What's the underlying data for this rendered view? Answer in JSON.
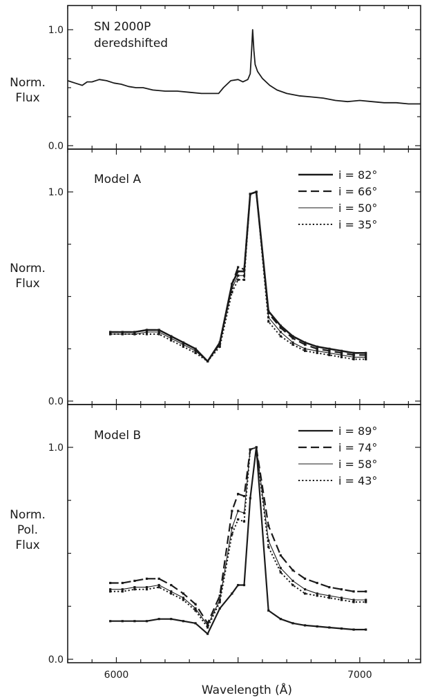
{
  "chart_data": [
    {
      "type": "line",
      "text": "SN 2000P\nderedshifted",
      "ylabel": "Norm.\nFlux",
      "xlim": [
        5800,
        7250
      ],
      "ylim": [
        0.0,
        1.15
      ],
      "yticks": [
        {
          "v": 0.0,
          "label": "0.0"
        },
        {
          "v": 1.0,
          "label": "1.0"
        }
      ],
      "grid": false,
      "series": [
        {
          "style": "solid",
          "markers": false,
          "x": [
            5800,
            5830,
            5860,
            5880,
            5900,
            5930,
            5960,
            5990,
            6020,
            6050,
            6080,
            6110,
            6150,
            6200,
            6250,
            6300,
            6350,
            6400,
            6420,
            6440,
            6470,
            6500,
            6520,
            6540,
            6550,
            6555,
            6560,
            6565,
            6570,
            6580,
            6600,
            6630,
            6660,
            6700,
            6750,
            6800,
            6850,
            6900,
            6950,
            7000,
            7050,
            7100,
            7150,
            7200,
            7250
          ],
          "y": [
            0.56,
            0.54,
            0.52,
            0.55,
            0.55,
            0.57,
            0.56,
            0.54,
            0.53,
            0.51,
            0.5,
            0.5,
            0.48,
            0.47,
            0.47,
            0.46,
            0.45,
            0.45,
            0.45,
            0.5,
            0.56,
            0.57,
            0.55,
            0.57,
            0.62,
            0.8,
            1.0,
            0.82,
            0.7,
            0.64,
            0.58,
            0.52,
            0.48,
            0.45,
            0.43,
            0.42,
            0.41,
            0.39,
            0.38,
            0.39,
            0.38,
            0.37,
            0.37,
            0.36,
            0.36
          ]
        }
      ]
    },
    {
      "type": "line",
      "text": "Model A",
      "ylabel": "Norm.\nFlux",
      "xlim": [
        5800,
        7250
      ],
      "ylim": [
        0.0,
        1.15
      ],
      "yticks": [
        {
          "v": 0.0,
          "label": "0.0"
        },
        {
          "v": 1.0,
          "label": "1.0"
        }
      ],
      "grid": false,
      "legend": "top-right",
      "series": [
        {
          "name": "i = 82°",
          "style": "solid",
          "width": 2.6,
          "markers": true,
          "x": [
            5975,
            6025,
            6075,
            6125,
            6175,
            6225,
            6275,
            6325,
            6375,
            6425,
            6475,
            6500,
            6525,
            6550,
            6575,
            6625,
            6675,
            6725,
            6775,
            6825,
            6875,
            6925,
            6975,
            7025
          ],
          "y": [
            0.33,
            0.33,
            0.33,
            0.34,
            0.34,
            0.31,
            0.28,
            0.25,
            0.19,
            0.28,
            0.56,
            0.62,
            0.62,
            0.99,
            1.0,
            0.43,
            0.36,
            0.31,
            0.28,
            0.26,
            0.25,
            0.24,
            0.23,
            0.23
          ]
        },
        {
          "name": "i = 66°",
          "style": "dashed",
          "width": 2.2,
          "markers": true,
          "x": [
            5975,
            6025,
            6075,
            6125,
            6175,
            6225,
            6275,
            6325,
            6375,
            6425,
            6475,
            6500,
            6525,
            6550,
            6575,
            6625,
            6675,
            6725,
            6775,
            6825,
            6875,
            6925,
            6975,
            7025
          ],
          "y": [
            0.33,
            0.33,
            0.33,
            0.34,
            0.34,
            0.31,
            0.28,
            0.25,
            0.19,
            0.28,
            0.56,
            0.64,
            0.63,
            0.99,
            1.0,
            0.42,
            0.35,
            0.3,
            0.27,
            0.25,
            0.24,
            0.23,
            0.22,
            0.22
          ]
        },
        {
          "name": "i = 50°",
          "style": "solid",
          "width": 1.1,
          "markers": true,
          "x": [
            5975,
            6025,
            6075,
            6125,
            6175,
            6225,
            6275,
            6325,
            6375,
            6425,
            6475,
            6500,
            6525,
            6550,
            6575,
            6625,
            6675,
            6725,
            6775,
            6825,
            6875,
            6925,
            6975,
            7025
          ],
          "y": [
            0.32,
            0.32,
            0.32,
            0.33,
            0.33,
            0.3,
            0.27,
            0.24,
            0.19,
            0.27,
            0.54,
            0.6,
            0.6,
            0.99,
            1.0,
            0.4,
            0.33,
            0.28,
            0.25,
            0.24,
            0.23,
            0.22,
            0.21,
            0.21
          ]
        },
        {
          "name": "i = 35°",
          "style": "dotted",
          "width": 2.0,
          "markers": true,
          "x": [
            5975,
            6025,
            6075,
            6125,
            6175,
            6225,
            6275,
            6325,
            6375,
            6425,
            6475,
            6500,
            6525,
            6550,
            6575,
            6625,
            6675,
            6725,
            6775,
            6825,
            6875,
            6925,
            6975,
            7025
          ],
          "y": [
            0.32,
            0.32,
            0.32,
            0.32,
            0.32,
            0.29,
            0.26,
            0.23,
            0.19,
            0.26,
            0.52,
            0.58,
            0.58,
            0.99,
            1.0,
            0.38,
            0.31,
            0.27,
            0.24,
            0.23,
            0.22,
            0.21,
            0.2,
            0.2
          ]
        }
      ]
    },
    {
      "type": "line",
      "text": "Model B",
      "ylabel": "Norm.\nPol.\nFlux",
      "xlabel": "Wavelength (Å)",
      "xlim": [
        5800,
        7250
      ],
      "ylim": [
        0.0,
        1.15
      ],
      "xticks": [
        {
          "v": 6000,
          "label": "6000"
        },
        {
          "v": 7000,
          "label": "7000"
        }
      ],
      "yticks": [
        {
          "v": 0.0,
          "label": "0.0"
        },
        {
          "v": 1.0,
          "label": "1.0"
        }
      ],
      "grid": false,
      "legend": "top-right",
      "series": [
        {
          "name": "i = 89°",
          "style": "solid",
          "width": 2.2,
          "markers": true,
          "x": [
            5975,
            6025,
            6075,
            6125,
            6175,
            6225,
            6275,
            6325,
            6375,
            6425,
            6475,
            6500,
            6525,
            6550,
            6575,
            6625,
            6675,
            6725,
            6775,
            6825,
            6875,
            6925,
            6975,
            7025
          ],
          "y": [
            0.18,
            0.18,
            0.18,
            0.18,
            0.19,
            0.19,
            0.18,
            0.17,
            0.12,
            0.24,
            0.31,
            0.35,
            0.35,
            0.76,
            1.0,
            0.23,
            0.19,
            0.17,
            0.16,
            0.155,
            0.15,
            0.145,
            0.14,
            0.14
          ]
        },
        {
          "name": "i = 74°",
          "style": "dashed",
          "width": 2.2,
          "markers": true,
          "x": [
            5975,
            6025,
            6075,
            6125,
            6175,
            6225,
            6275,
            6325,
            6375,
            6425,
            6475,
            6500,
            6525,
            6550,
            6575,
            6625,
            6675,
            6725,
            6775,
            6825,
            6875,
            6925,
            6975,
            7025
          ],
          "y": [
            0.36,
            0.36,
            0.37,
            0.38,
            0.38,
            0.35,
            0.31,
            0.26,
            0.17,
            0.3,
            0.7,
            0.78,
            0.77,
            0.99,
            1.0,
            0.63,
            0.49,
            0.42,
            0.38,
            0.36,
            0.34,
            0.33,
            0.32,
            0.32
          ]
        },
        {
          "name": "i = 58°",
          "style": "solid",
          "width": 1.1,
          "markers": true,
          "x": [
            5975,
            6025,
            6075,
            6125,
            6175,
            6225,
            6275,
            6325,
            6375,
            6425,
            6475,
            6500,
            6525,
            6550,
            6575,
            6625,
            6675,
            6725,
            6775,
            6825,
            6875,
            6925,
            6975,
            7025
          ],
          "y": [
            0.33,
            0.33,
            0.34,
            0.34,
            0.35,
            0.32,
            0.29,
            0.24,
            0.16,
            0.28,
            0.62,
            0.7,
            0.69,
            0.99,
            1.0,
            0.56,
            0.43,
            0.37,
            0.33,
            0.31,
            0.3,
            0.29,
            0.28,
            0.28
          ]
        },
        {
          "name": "i = 43°",
          "style": "dotted",
          "width": 2.0,
          "markers": true,
          "x": [
            5975,
            6025,
            6075,
            6125,
            6175,
            6225,
            6275,
            6325,
            6375,
            6425,
            6475,
            6500,
            6525,
            6550,
            6575,
            6625,
            6675,
            6725,
            6775,
            6825,
            6875,
            6925,
            6975,
            7025
          ],
          "y": [
            0.32,
            0.32,
            0.33,
            0.33,
            0.34,
            0.31,
            0.28,
            0.23,
            0.15,
            0.27,
            0.59,
            0.66,
            0.65,
            0.99,
            1.0,
            0.53,
            0.41,
            0.35,
            0.31,
            0.3,
            0.29,
            0.28,
            0.27,
            0.27
          ]
        }
      ]
    }
  ]
}
